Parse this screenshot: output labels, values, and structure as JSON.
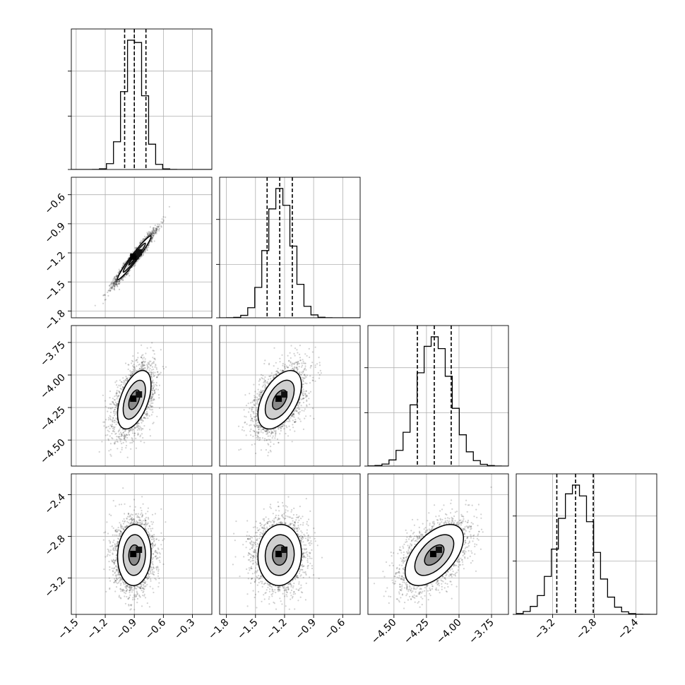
{
  "chart_data": {
    "type": "corner",
    "grid": true,
    "parameters": [
      {
        "range": [
          -1.55,
          -0.1
        ],
        "ticks": [
          -1.5,
          -1.2,
          -0.9,
          -0.6,
          -0.3
        ],
        "tick_labels": [
          "−1.5",
          "−1.2",
          "−0.9",
          "−0.6",
          "−0.3"
        ],
        "quantiles": [
          -1.0,
          -0.9,
          -0.78
        ],
        "mean": -0.9,
        "sd": 0.1
      },
      {
        "range": [
          -1.87,
          -0.42
        ],
        "ticks": [
          -1.8,
          -1.5,
          -1.2,
          -0.9,
          -0.6
        ],
        "tick_labels": [
          "−1.8",
          "−1.5",
          "−1.2",
          "−0.9",
          "−0.6"
        ],
        "quantiles": [
          -1.38,
          -1.25,
          -1.12
        ],
        "mean": -1.25,
        "sd": 0.13
      },
      {
        "range": [
          -4.7,
          -3.62
        ],
        "ticks": [
          -4.5,
          -4.25,
          -4.0,
          -3.75
        ],
        "tick_labels": [
          "−4.50",
          "−4.25",
          "−4.00",
          "−3.75"
        ],
        "quantiles": [
          -4.32,
          -4.19,
          -4.06
        ],
        "mean": -4.19,
        "sd": 0.13
      },
      {
        "range": [
          -3.55,
          -2.2
        ],
        "ticks": [
          -3.2,
          -2.8,
          -2.4
        ],
        "tick_labels": [
          "−3.2",
          "−2.8",
          "−2.4"
        ],
        "quantiles": [
          -3.16,
          -2.98,
          -2.81
        ],
        "mean": -2.98,
        "sd": 0.17
      }
    ],
    "correlations": [
      [
        1.0,
        0.97,
        0.5,
        0.05
      ],
      [
        0.97,
        1.0,
        0.5,
        0.05
      ],
      [
        0.5,
        0.5,
        1.0,
        0.55
      ],
      [
        0.05,
        0.05,
        0.55,
        1.0
      ]
    ],
    "histogram_bins": 20,
    "contour_levels": [
      0.5,
      1.0,
      1.5
    ]
  }
}
